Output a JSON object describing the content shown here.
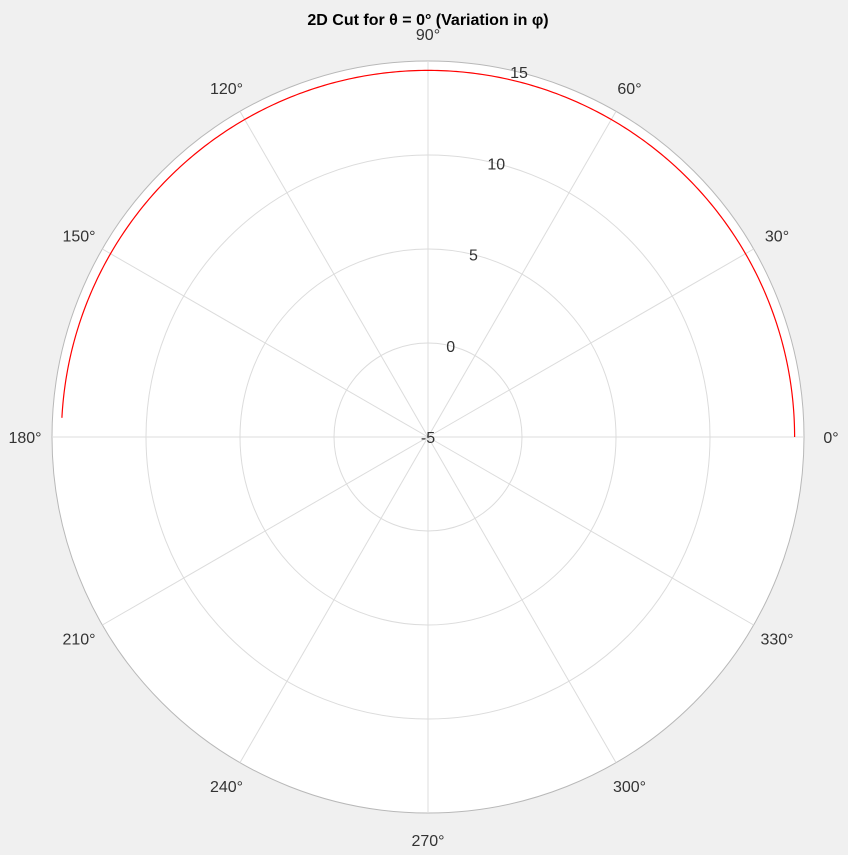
{
  "chart_data": {
    "type": "line",
    "projection": "polar",
    "title": "2D Cut for θ = 0° (Variation in φ)",
    "theta_ticks": [
      {
        "deg": 0,
        "label": "0°"
      },
      {
        "deg": 30,
        "label": "30°"
      },
      {
        "deg": 60,
        "label": "60°"
      },
      {
        "deg": 90,
        "label": "90°"
      },
      {
        "deg": 120,
        "label": "120°"
      },
      {
        "deg": 150,
        "label": "150°"
      },
      {
        "deg": 180,
        "label": "180°"
      },
      {
        "deg": 210,
        "label": "210°"
      },
      {
        "deg": 240,
        "label": "240°"
      },
      {
        "deg": 270,
        "label": "270°"
      },
      {
        "deg": 300,
        "label": "300°"
      },
      {
        "deg": 330,
        "label": "330°"
      }
    ],
    "r_ticks": [
      {
        "value": -5,
        "label": "-5"
      },
      {
        "value": 0,
        "label": "0"
      },
      {
        "value": 5,
        "label": "5"
      },
      {
        "value": 10,
        "label": "10"
      },
      {
        "value": 15,
        "label": "15"
      }
    ],
    "r_range": [
      -5,
      15
    ],
    "r_max_axis": 15.0,
    "r_label_angle_deg": 76,
    "grid": true,
    "series": [
      {
        "color": "#ff0000",
        "phi_range_deg": [
          0,
          177
        ],
        "value": 14.5
      }
    ]
  }
}
